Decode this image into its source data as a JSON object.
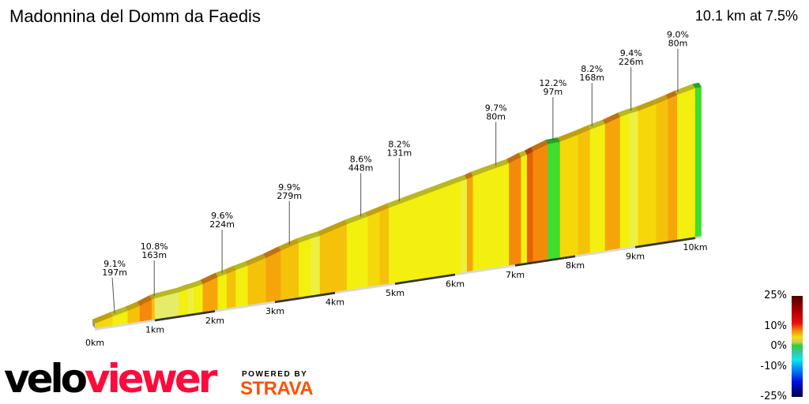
{
  "header": {
    "title": "Madonnina del Domm da Faedis",
    "summary": "10.1 km at 7.5%"
  },
  "chart_data": {
    "type": "area",
    "title": "Madonnina del Domm da Faedis",
    "distance_km": 10.1,
    "avg_gradient_pct": 7.5,
    "x_ticks": [
      "0km",
      "1km",
      "2km",
      "3km",
      "4km",
      "5km",
      "6km",
      "7km",
      "8km",
      "9km",
      "10km"
    ],
    "segments": [
      {
        "from": 0,
        "to": 0.3,
        "gradient": 7.5
      },
      {
        "from": 0.3,
        "to": 0.55,
        "gradient": 6.5
      },
      {
        "from": 0.55,
        "to": 0.75,
        "gradient": 8
      },
      {
        "from": 0.75,
        "to": 0.95,
        "gradient": 10.8
      },
      {
        "from": 0.95,
        "to": 1.0,
        "gradient": 8
      },
      {
        "from": 1.0,
        "to": 1.4,
        "gradient": 3
      },
      {
        "from": 1.4,
        "to": 1.55,
        "gradient": 6
      },
      {
        "from": 1.55,
        "to": 1.65,
        "gradient": 4
      },
      {
        "from": 1.65,
        "to": 1.8,
        "gradient": 6
      },
      {
        "from": 1.8,
        "to": 2.05,
        "gradient": 9.6
      },
      {
        "from": 2.05,
        "to": 2.2,
        "gradient": 6
      },
      {
        "from": 2.2,
        "to": 2.35,
        "gradient": 8
      },
      {
        "from": 2.35,
        "to": 2.55,
        "gradient": 6.5
      },
      {
        "from": 2.55,
        "to": 2.85,
        "gradient": 8
      },
      {
        "from": 2.85,
        "to": 3.1,
        "gradient": 9.9
      },
      {
        "from": 3.1,
        "to": 3.4,
        "gradient": 8.5
      },
      {
        "from": 3.4,
        "to": 3.6,
        "gradient": 6
      },
      {
        "from": 3.6,
        "to": 3.75,
        "gradient": 4.5
      },
      {
        "from": 3.75,
        "to": 4.2,
        "gradient": 8.2
      },
      {
        "from": 4.2,
        "to": 4.55,
        "gradient": 6.5
      },
      {
        "from": 4.55,
        "to": 4.75,
        "gradient": 7.5
      },
      {
        "from": 4.75,
        "to": 4.9,
        "gradient": 8
      },
      {
        "from": 4.9,
        "to": 5.6,
        "gradient": 6.5
      },
      {
        "from": 5.6,
        "to": 6.1,
        "gradient": 6.5
      },
      {
        "from": 6.1,
        "to": 6.2,
        "gradient": 5
      },
      {
        "from": 6.2,
        "to": 6.3,
        "gradient": 9.7
      },
      {
        "from": 6.3,
        "to": 6.5,
        "gradient": 6.5
      },
      {
        "from": 6.5,
        "to": 6.9,
        "gradient": 6
      },
      {
        "from": 6.9,
        "to": 7.1,
        "gradient": 11
      },
      {
        "from": 7.1,
        "to": 7.2,
        "gradient": 6.5
      },
      {
        "from": 7.2,
        "to": 7.3,
        "gradient": 12.2
      },
      {
        "from": 7.3,
        "to": 7.55,
        "gradient": 10
      },
      {
        "from": 7.55,
        "to": 7.75,
        "gradient": 1.5
      },
      {
        "from": 7.75,
        "to": 8.05,
        "gradient": 7
      },
      {
        "from": 8.05,
        "to": 8.25,
        "gradient": 8.2
      },
      {
        "from": 8.25,
        "to": 8.5,
        "gradient": 6.5
      },
      {
        "from": 8.5,
        "to": 8.75,
        "gradient": 9.4
      },
      {
        "from": 8.75,
        "to": 8.9,
        "gradient": 6.5
      },
      {
        "from": 8.9,
        "to": 9.05,
        "gradient": 4
      },
      {
        "from": 9.05,
        "to": 9.35,
        "gradient": 7
      },
      {
        "from": 9.35,
        "to": 9.55,
        "gradient": 8
      },
      {
        "from": 9.55,
        "to": 9.7,
        "gradient": 9
      },
      {
        "from": 9.7,
        "to": 10.0,
        "gradient": 6.5
      },
      {
        "from": 10.0,
        "to": 10.1,
        "gradient": 1.5
      }
    ],
    "annotations": [
      {
        "km": 0.33,
        "gradient": "9.1%",
        "length": "197m"
      },
      {
        "km": 0.99,
        "gradient": "10.8%",
        "length": "163m"
      },
      {
        "km": 2.12,
        "gradient": "9.6%",
        "length": "224m"
      },
      {
        "km": 3.24,
        "gradient": "9.9%",
        "length": "279m"
      },
      {
        "km": 4.43,
        "gradient": "8.6%",
        "length": "448m"
      },
      {
        "km": 5.07,
        "gradient": "8.2%",
        "length": "131m"
      },
      {
        "km": 6.68,
        "gradient": "9.7%",
        "length": "80m"
      },
      {
        "km": 7.63,
        "gradient": "12.2%",
        "length": "97m"
      },
      {
        "km": 8.28,
        "gradient": "8.2%",
        "length": "168m"
      },
      {
        "km": 8.93,
        "gradient": "9.4%",
        "length": "226m"
      },
      {
        "km": 9.71,
        "gradient": "9.0%",
        "length": "80m"
      }
    ]
  },
  "legend": {
    "labels": [
      "25%",
      "10%",
      "0%",
      "-10%",
      "-25%"
    ]
  },
  "branding": {
    "logo_velo": "velo",
    "logo_viewer": "viewer",
    "powered_by": "POWERED BY",
    "strava": "STRAVA",
    "viewer_color": "#ff0a3c",
    "strava_color": "#fc5200"
  }
}
